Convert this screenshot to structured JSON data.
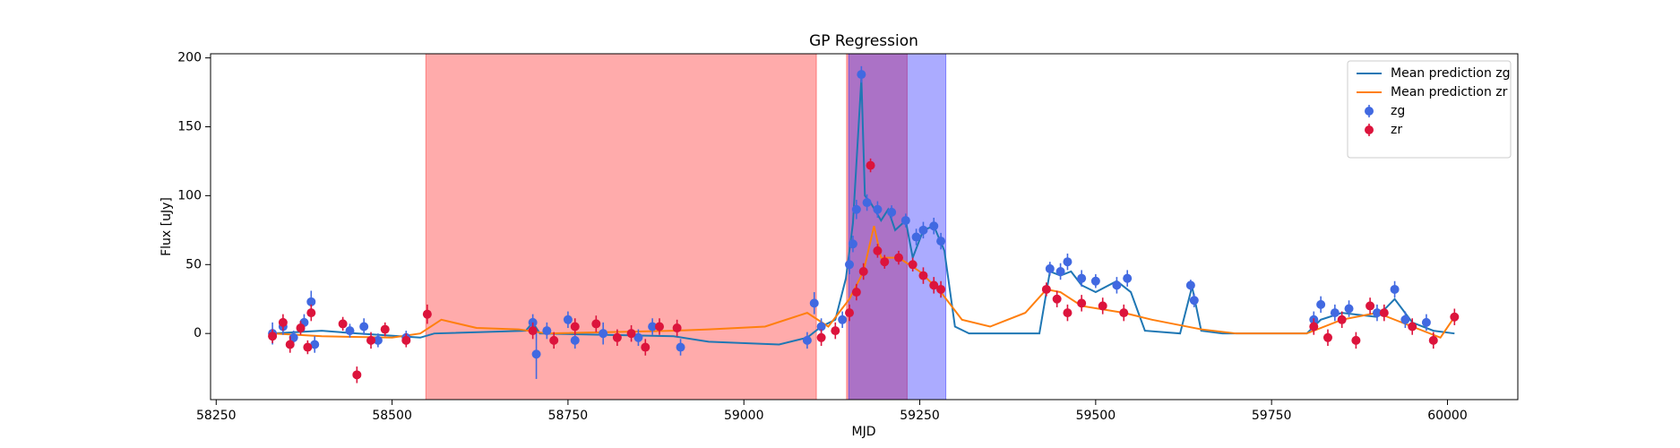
{
  "chart_data": {
    "type": "line",
    "title": "GP Regression",
    "x_label": "MJD",
    "y_label": "Flux [uJy]",
    "xlim": [
      58242,
      60100
    ],
    "ylim": [
      -48,
      203
    ],
    "xticks": [
      58250,
      58500,
      58750,
      59000,
      59250,
      59500,
      59750,
      60000
    ],
    "yticks": [
      0,
      50,
      100,
      150,
      200
    ],
    "legend": "upper right",
    "spans": [
      {
        "xlim": [
          58548,
          59103
        ],
        "color": "#ff0000"
      },
      {
        "xlim": [
          59146,
          59232
        ],
        "color": "#ff0000"
      },
      {
        "xlim": [
          59149,
          59287
        ],
        "color": "#0000ff"
      }
    ],
    "series": [
      {
        "name": "Mean prediction zg",
        "type": "line",
        "color": "#1f77b4",
        "x": [
          58330,
          58400,
          58450,
          58540,
          58560,
          58690,
          58700,
          58710,
          58900,
          58950,
          59050,
          59090,
          59110,
          59130,
          59145,
          59155,
          59163,
          59167,
          59172,
          59180,
          59195,
          59205,
          59215,
          59230,
          59240,
          59255,
          59270,
          59285,
          59300,
          59320,
          59420,
          59435,
          59450,
          59465,
          59480,
          59500,
          59530,
          59550,
          59570,
          59620,
          59637,
          59650,
          59680,
          59800,
          59820,
          59850,
          59900,
          59925,
          59950,
          59980,
          60010
        ],
        "values": [
          0,
          2,
          0,
          -3,
          0,
          2,
          8,
          0,
          -2,
          -6,
          -8,
          -3,
          5,
          10,
          40,
          80,
          150,
          185,
          100,
          95,
          82,
          90,
          75,
          82,
          55,
          75,
          78,
          60,
          5,
          0,
          0,
          45,
          42,
          45,
          35,
          30,
          38,
          30,
          2,
          0,
          34,
          2,
          0,
          0,
          10,
          15,
          12,
          25,
          8,
          2,
          0
        ]
      },
      {
        "name": "Mean prediction zr",
        "type": "line",
        "color": "#ff7f0e",
        "x": [
          58330,
          58400,
          58500,
          58540,
          58570,
          58620,
          58680,
          58720,
          58900,
          58950,
          59030,
          59090,
          59120,
          59150,
          59170,
          59185,
          59195,
          59220,
          59250,
          59280,
          59310,
          59350,
          59400,
          59430,
          59450,
          59480,
          59540,
          59580,
          59650,
          59700,
          59800,
          59850,
          59900,
          59950,
          59990,
          60010
        ],
        "values": [
          0,
          -2,
          -3,
          0,
          10,
          4,
          3,
          0,
          2,
          3,
          5,
          15,
          5,
          25,
          45,
          78,
          55,
          55,
          45,
          30,
          10,
          5,
          15,
          32,
          30,
          20,
          15,
          10,
          3,
          0,
          0,
          10,
          15,
          5,
          -3,
          12
        ]
      },
      {
        "name": "zg",
        "type": "scatter",
        "color": "#4169e1",
        "x": [
          58330,
          58345,
          58360,
          58375,
          58385,
          58390,
          58440,
          58460,
          58480,
          58520,
          58700,
          58705,
          58720,
          58750,
          58760,
          58800,
          58850,
          58870,
          58910,
          59090,
          59100,
          59110,
          59140,
          59150,
          59155,
          59160,
          59167,
          59175,
          59190,
          59210,
          59230,
          59245,
          59255,
          59270,
          59280,
          59435,
          59450,
          59460,
          59480,
          59500,
          59530,
          59545,
          59635,
          59640,
          59810,
          59820,
          59840,
          59860,
          59900,
          59925,
          59940,
          59970
        ],
        "values": [
          0,
          5,
          -3,
          8,
          23,
          -8,
          2,
          5,
          -5,
          -3,
          8,
          -15,
          2,
          10,
          -5,
          0,
          -3,
          5,
          -10,
          -5,
          22,
          5,
          10,
          50,
          65,
          90,
          188,
          95,
          90,
          88,
          82,
          70,
          75,
          78,
          67,
          47,
          45,
          52,
          40,
          38,
          35,
          40,
          35,
          24,
          10,
          21,
          15,
          18,
          15,
          32,
          10,
          8
        ],
        "errors": [
          8,
          6,
          5,
          6,
          8,
          6,
          5,
          6,
          5,
          5,
          6,
          18,
          6,
          6,
          6,
          8,
          6,
          6,
          6,
          6,
          8,
          6,
          6,
          7,
          6,
          7,
          6,
          6,
          6,
          5,
          5,
          6,
          6,
          6,
          6,
          5,
          6,
          6,
          6,
          5,
          6,
          6,
          4,
          5,
          6,
          6,
          6,
          6,
          6,
          6,
          6,
          6
        ]
      },
      {
        "name": "zr",
        "type": "scatter",
        "color": "#dc143c",
        "x": [
          58330,
          58345,
          58355,
          58370,
          58380,
          58385,
          58430,
          58450,
          58470,
          58490,
          58520,
          58550,
          58700,
          58730,
          58760,
          58790,
          58820,
          58840,
          58860,
          58880,
          58905,
          59110,
          59130,
          59150,
          59160,
          59170,
          59180,
          59190,
          59200,
          59220,
          59240,
          59255,
          59270,
          59280,
          59430,
          59445,
          59460,
          59480,
          59510,
          59540,
          59810,
          59830,
          59850,
          59870,
          59890,
          59910,
          59950,
          59980,
          60010
        ],
        "values": [
          -2,
          8,
          -8,
          4,
          -10,
          15,
          7,
          -30,
          -5,
          3,
          -5,
          14,
          2,
          -5,
          5,
          7,
          -3,
          0,
          -10,
          5,
          4,
          -3,
          2,
          15,
          30,
          45,
          122,
          60,
          52,
          55,
          50,
          42,
          35,
          32,
          32,
          25,
          15,
          22,
          20,
          15,
          5,
          -3,
          10,
          -5,
          20,
          15,
          5,
          -5,
          12
        ],
        "errors": [
          5,
          6,
          6,
          5,
          5,
          6,
          5,
          6,
          6,
          5,
          5,
          7,
          6,
          6,
          6,
          6,
          6,
          6,
          6,
          6,
          6,
          6,
          6,
          6,
          6,
          6,
          5,
          5,
          5,
          5,
          5,
          6,
          6,
          6,
          5,
          6,
          6,
          6,
          6,
          6,
          6,
          6,
          6,
          6,
          6,
          6,
          6,
          6,
          6
        ]
      }
    ]
  }
}
